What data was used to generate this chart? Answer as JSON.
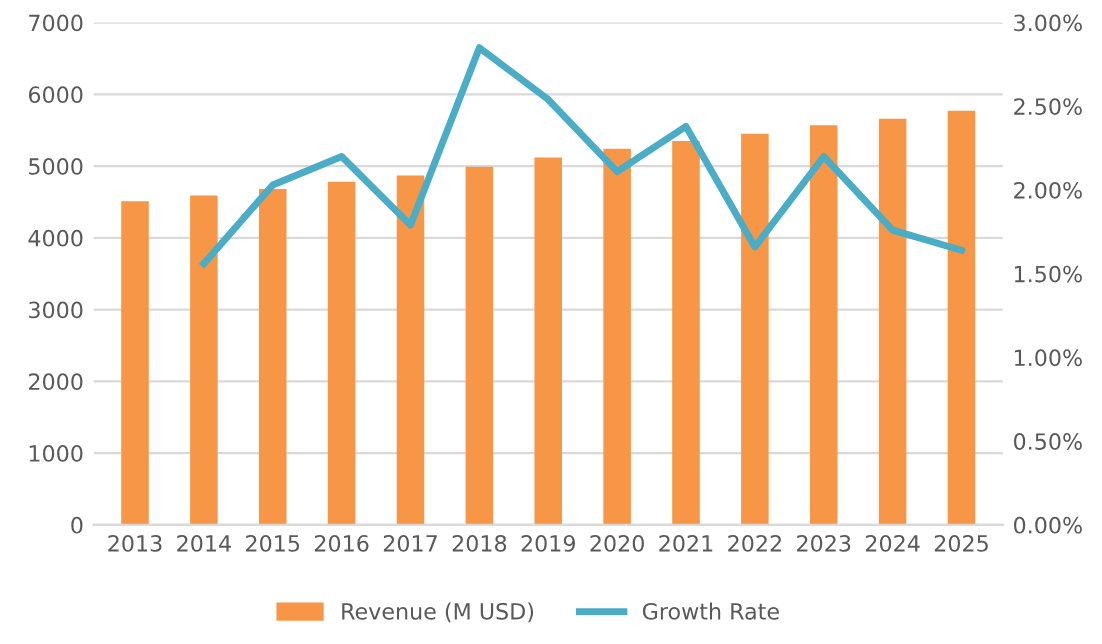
{
  "chart_data": {
    "type": "bar",
    "categories": [
      "2013",
      "2014",
      "2015",
      "2016",
      "2017",
      "2018",
      "2019",
      "2020",
      "2021",
      "2022",
      "2023",
      "2024",
      "2025"
    ],
    "series": [
      {
        "name": "Revenue (M USD)",
        "color": "#f79646",
        "values": [
          4510,
          4590,
          4680,
          4780,
          4870,
          4990,
          5120,
          5240,
          5350,
          5450,
          5570,
          5660,
          5770
        ]
      },
      {
        "name": "Growth Rate",
        "type": "line",
        "axis": "y2",
        "color": "#4bacc6",
        "values": [
          null,
          1.56,
          2.03,
          2.2,
          1.79,
          2.85,
          2.54,
          2.11,
          2.38,
          1.66,
          2.2,
          1.76,
          1.64
        ]
      }
    ],
    "ylim": [
      0,
      7000
    ],
    "yticks": [
      0,
      1000,
      2000,
      3000,
      4000,
      5000,
      6000,
      7000
    ],
    "y2lim": [
      0,
      3
    ],
    "y2ticks": [
      {
        "value": 0,
        "label": "0.00%"
      },
      {
        "value": 0.5,
        "label": "0.50%"
      },
      {
        "value": 1,
        "label": "1.00%"
      },
      {
        "value": 1.5,
        "label": "1.50%"
      },
      {
        "value": 2,
        "label": "2.00%"
      },
      {
        "value": 2.5,
        "label": "2.50%"
      },
      {
        "value": 3,
        "label": "3.00%"
      }
    ],
    "grid": "y",
    "legend": "bottom",
    "marker": "none"
  }
}
